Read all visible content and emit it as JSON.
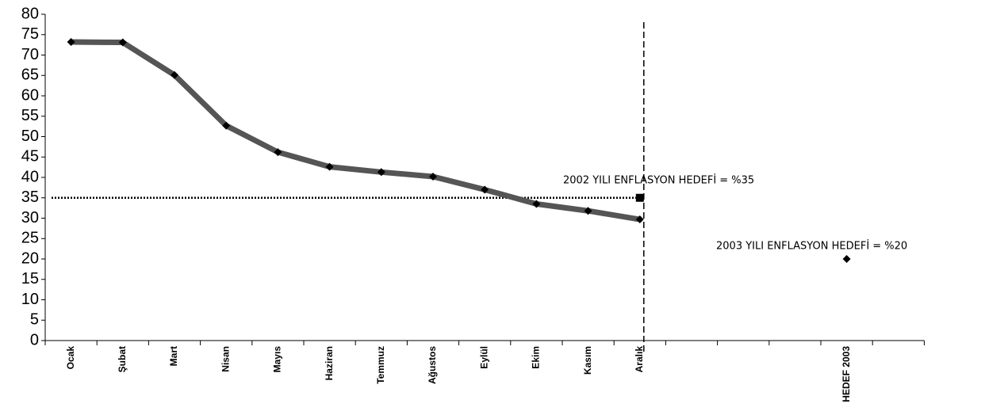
{
  "chart_data": {
    "type": "line",
    "categories": [
      "Ocak",
      "Şubat",
      "Mart",
      "Nisan",
      "Mayıs",
      "Haziran",
      "Temmuz",
      "Ağustos",
      "Eylül",
      "Ekim",
      "Kasım",
      "Aralık",
      null,
      null,
      null,
      "HEDEF 2003",
      null
    ],
    "series": [
      {
        "color": "#555555",
        "marker": "diamond",
        "values": [
          73.2,
          73.1,
          65.1,
          52.7,
          46.2,
          42.6,
          41.3,
          40.2,
          37.0,
          33.5,
          31.8,
          29.7,
          null,
          null,
          null,
          null,
          null
        ]
      },
      {
        "color": "#000000",
        "marker": "square",
        "values": [
          null,
          null,
          null,
          null,
          null,
          null,
          null,
          null,
          null,
          null,
          null,
          35,
          null,
          null,
          null,
          null,
          null
        ]
      },
      {
        "color": "#000000",
        "marker": "diamond",
        "values": [
          null,
          null,
          null,
          null,
          null,
          null,
          null,
          null,
          null,
          null,
          null,
          null,
          null,
          null,
          null,
          20,
          null
        ]
      }
    ],
    "reference_lines": [
      {
        "value": 35,
        "style": "dotted"
      }
    ],
    "annotations": [
      "2002 YILI ENFLASYON HEDEFİ = %35",
      "2003 YILI ENFLASYON HEDEFİ = %20"
    ],
    "ylim": [
      0,
      80
    ],
    "yticks": [
      0,
      5,
      10,
      15,
      20,
      25,
      30,
      35,
      40,
      45,
      50,
      55,
      60,
      65,
      70,
      75,
      80
    ],
    "grid": false
  }
}
